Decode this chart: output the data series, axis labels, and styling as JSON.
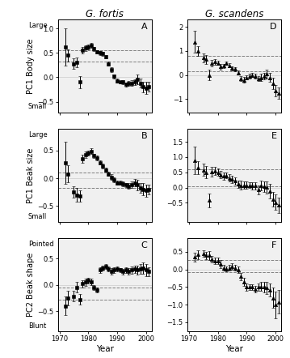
{
  "fortis_years": [
    1972,
    1973,
    1975,
    1976,
    1977,
    1978,
    1979,
    1980,
    1981,
    1982,
    1983,
    1984,
    1985,
    1986,
    1987,
    1988,
    1989,
    1990,
    1991,
    1992,
    1993,
    1994,
    1995,
    1996,
    1997,
    1998,
    1999,
    2000,
    2001
  ],
  "scandens_years": [
    1972,
    1973,
    1975,
    1976,
    1977,
    1978,
    1979,
    1980,
    1981,
    1982,
    1983,
    1984,
    1985,
    1986,
    1987,
    1988,
    1989,
    1990,
    1991,
    1992,
    1993,
    1994,
    1995,
    1996,
    1997,
    1998,
    1999,
    2000,
    2001
  ],
  "A_vals": [
    0.62,
    0.45,
    0.28,
    0.3,
    -0.1,
    0.55,
    0.6,
    0.62,
    0.65,
    0.58,
    0.52,
    0.5,
    0.48,
    0.42,
    0.28,
    0.15,
    0.02,
    -0.07,
    -0.1,
    -0.1,
    -0.15,
    -0.12,
    -0.12,
    -0.1,
    -0.05,
    -0.12,
    -0.2,
    -0.22,
    -0.2
  ],
  "A_err": [
    0.38,
    0.12,
    0.1,
    0.1,
    0.12,
    0.07,
    0.06,
    0.05,
    0.05,
    0.04,
    0.04,
    0.04,
    0.04,
    0.04,
    0.04,
    0.05,
    0.04,
    0.04,
    0.03,
    0.04,
    0.04,
    0.05,
    0.06,
    0.06,
    0.1,
    0.09,
    0.11,
    0.12,
    0.1
  ],
  "A_ci_upper": 0.55,
  "A_ci_lower": 0.32,
  "A_ylim": [
    -0.72,
    1.18
  ],
  "A_yticks": [
    -0.5,
    0.0,
    0.5,
    1.0
  ],
  "D_vals": [
    1.38,
    1.0,
    0.72,
    0.65,
    0.0,
    0.5,
    0.55,
    0.5,
    0.35,
    0.38,
    0.48,
    0.4,
    0.28,
    0.25,
    0.1,
    -0.15,
    -0.2,
    -0.1,
    -0.05,
    0.0,
    -0.05,
    -0.15,
    -0.1,
    -0.05,
    0.04,
    -0.1,
    -0.35,
    -0.65,
    -0.75
  ],
  "D_err": [
    0.45,
    0.2,
    0.18,
    0.18,
    0.22,
    0.14,
    0.11,
    0.09,
    0.11,
    0.09,
    0.07,
    0.09,
    0.09,
    0.09,
    0.09,
    0.11,
    0.11,
    0.09,
    0.09,
    0.09,
    0.09,
    0.11,
    0.14,
    0.14,
    0.17,
    0.19,
    0.23,
    0.24,
    0.24
  ],
  "D_ci_upper": 0.8,
  "D_ci_lower": 0.15,
  "D_ylim": [
    -1.55,
    2.3
  ],
  "D_yticks": [
    -1.0,
    0.0,
    1.0,
    2.0
  ],
  "B_vals": [
    0.28,
    0.08,
    -0.25,
    -0.3,
    -0.32,
    0.35,
    0.42,
    0.45,
    0.48,
    0.4,
    0.36,
    0.28,
    0.22,
    0.15,
    0.08,
    0.02,
    -0.03,
    -0.08,
    -0.08,
    -0.1,
    -0.12,
    -0.14,
    -0.12,
    -0.08,
    -0.12,
    -0.17,
    -0.2,
    -0.22,
    -0.2
  ],
  "B_err": [
    0.38,
    0.15,
    0.1,
    0.12,
    0.1,
    0.07,
    0.06,
    0.05,
    0.05,
    0.04,
    0.04,
    0.04,
    0.04,
    0.04,
    0.04,
    0.05,
    0.04,
    0.04,
    0.03,
    0.04,
    0.04,
    0.05,
    0.06,
    0.07,
    0.09,
    0.09,
    0.11,
    0.11,
    0.09
  ],
  "B_ci_upper": 0.1,
  "B_ci_lower": -0.18,
  "B_ylim": [
    -0.78,
    0.88
  ],
  "B_yticks": [
    -0.5,
    0.0,
    0.5
  ],
  "E_vals": [
    0.9,
    0.65,
    0.58,
    0.5,
    -0.42,
    0.52,
    0.55,
    0.5,
    0.42,
    0.38,
    0.4,
    0.32,
    0.28,
    0.22,
    0.12,
    0.08,
    0.08,
    0.08,
    0.08,
    0.06,
    0.06,
    -0.07,
    0.08,
    0.04,
    0.01,
    -0.12,
    -0.38,
    -0.48,
    -0.58
  ],
  "E_err": [
    0.45,
    0.22,
    0.2,
    0.2,
    0.22,
    0.16,
    0.14,
    0.12,
    0.12,
    0.12,
    0.09,
    0.12,
    0.12,
    0.12,
    0.12,
    0.14,
    0.12,
    0.12,
    0.09,
    0.12,
    0.12,
    0.14,
    0.16,
    0.17,
    0.2,
    0.23,
    0.25,
    0.25,
    0.25
  ],
  "E_ci_upper": 0.6,
  "E_ci_lower": 0.05,
  "E_ylim": [
    -1.12,
    1.92
  ],
  "E_yticks": [
    -0.5,
    0.0,
    0.5,
    1.0,
    1.5
  ],
  "C_vals": [
    -0.4,
    -0.25,
    -0.22,
    -0.05,
    -0.28,
    0.02,
    0.05,
    0.08,
    0.05,
    -0.05,
    -0.1,
    0.28,
    0.32,
    0.35,
    0.3,
    0.25,
    0.28,
    0.3,
    0.28,
    0.25,
    0.28,
    0.25,
    0.28,
    0.3,
    0.28,
    0.3,
    0.32,
    0.28,
    0.25
  ],
  "C_err": [
    0.18,
    0.14,
    0.1,
    0.1,
    0.1,
    0.07,
    0.07,
    0.06,
    0.06,
    0.05,
    0.05,
    0.05,
    0.05,
    0.05,
    0.05,
    0.06,
    0.05,
    0.05,
    0.04,
    0.05,
    0.05,
    0.06,
    0.07,
    0.07,
    0.09,
    0.09,
    0.11,
    0.11,
    0.09
  ],
  "C_ci_upper": -0.05,
  "C_ci_lower": -0.28,
  "C_ylim": [
    -0.88,
    0.88
  ],
  "C_yticks": [
    -0.5,
    0.0,
    0.5
  ],
  "F_vals": [
    0.35,
    0.42,
    0.45,
    0.4,
    0.4,
    0.3,
    0.25,
    0.25,
    0.15,
    0.05,
    0.02,
    0.05,
    0.08,
    0.05,
    0.0,
    -0.2,
    -0.35,
    -0.5,
    -0.5,
    -0.5,
    -0.55,
    -0.5,
    -0.48,
    -0.5,
    -0.52,
    -0.58,
    -0.8,
    -1.0,
    -0.92
  ],
  "F_err": [
    0.12,
    0.12,
    0.1,
    0.1,
    0.12,
    0.09,
    0.09,
    0.09,
    0.11,
    0.09,
    0.07,
    0.09,
    0.09,
    0.09,
    0.09,
    0.11,
    0.11,
    0.11,
    0.09,
    0.09,
    0.09,
    0.11,
    0.13,
    0.14,
    0.17,
    0.19,
    0.28,
    0.38,
    0.33
  ],
  "F_ci_upper": 0.28,
  "F_ci_lower": -0.08,
  "F_ylim": [
    -1.75,
    0.88
  ],
  "F_yticks": [
    -1.5,
    -1.0,
    -0.5,
    0.0,
    0.5
  ],
  "col1_title": "G. fortis",
  "col2_title": "G. scandens",
  "ylabel_A": "PC1 Body size",
  "ylabel_B": "PC1 Beak size",
  "ylabel_C": "PC2 Beak shape",
  "top_A": "Large",
  "bot_A": "Small",
  "top_B": "Large",
  "bot_B": "Small",
  "top_C": "Pointed",
  "bot_C": "Blunt",
  "xlabel": "Year",
  "xmin": 1969.5,
  "xmax": 2002,
  "xticks": [
    1970,
    1980,
    1990,
    2000
  ]
}
